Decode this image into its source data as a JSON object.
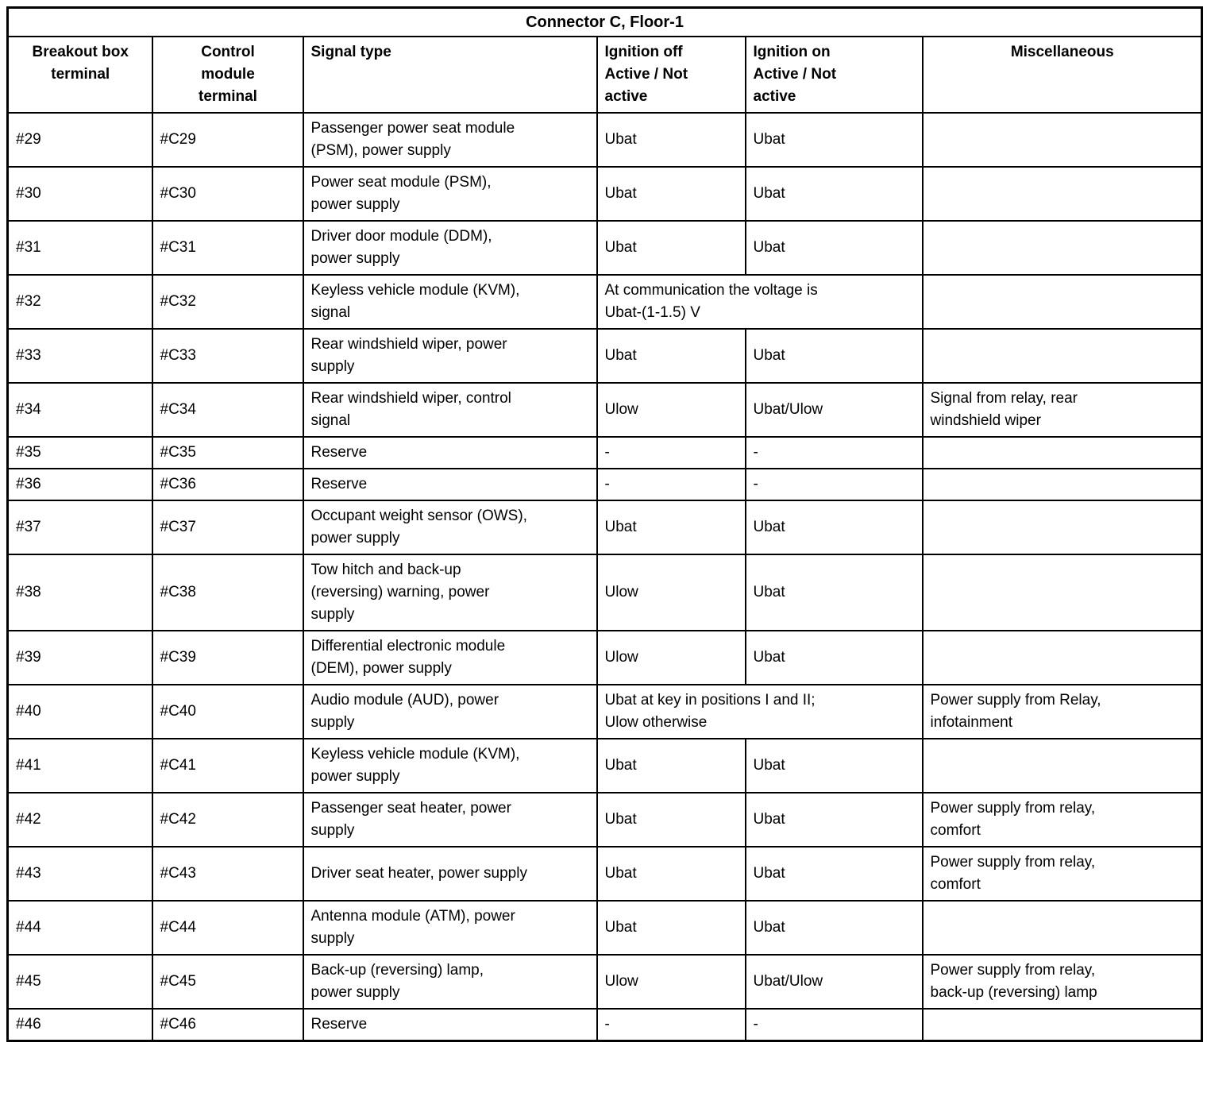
{
  "title": "Connector C, Floor-1",
  "headers": {
    "breakout": "Breakout box\nterminal",
    "module": "Control\nmodule\nterminal",
    "signal": "Signal type",
    "ignition_off": "Ignition off\nActive / Not\nactive",
    "ignition_on": "Ignition on\nActive / Not\nactive",
    "misc": "Miscellaneous"
  },
  "rows": [
    {
      "breakout": "#29",
      "module": "#C29",
      "signal": "Passenger power seat module\n(PSM), power supply",
      "ignition_off": "Ubat",
      "ignition_on": "Ubat",
      "misc": ""
    },
    {
      "breakout": "#30",
      "module": "#C30",
      "signal": "Power seat module (PSM),\npower supply",
      "ignition_off": "Ubat",
      "ignition_on": "Ubat",
      "misc": ""
    },
    {
      "breakout": "#31",
      "module": "#C31",
      "signal": "Driver door module (DDM),\npower supply",
      "ignition_off": "Ubat",
      "ignition_on": "Ubat",
      "misc": ""
    },
    {
      "breakout": "#32",
      "module": "#C32",
      "signal": "Keyless vehicle module (KVM),\nsignal",
      "ignition_merged": "At communication the voltage is\nUbat-(1-1.5) V",
      "misc": ""
    },
    {
      "breakout": "#33",
      "module": "#C33",
      "signal": "Rear windshield wiper, power\nsupply",
      "ignition_off": "Ubat",
      "ignition_on": "Ubat",
      "misc": ""
    },
    {
      "breakout": "#34",
      "module": "#C34",
      "signal": "Rear windshield wiper, control\nsignal",
      "ignition_off": "Ulow",
      "ignition_on": "Ubat/Ulow",
      "misc": "Signal from relay, rear\nwindshield wiper"
    },
    {
      "breakout": "#35",
      "module": "#C35",
      "signal": "Reserve",
      "ignition_off": "-",
      "ignition_on": "-",
      "misc": ""
    },
    {
      "breakout": "#36",
      "module": "#C36",
      "signal": "Reserve",
      "ignition_off": "-",
      "ignition_on": "-",
      "misc": ""
    },
    {
      "breakout": "#37",
      "module": "#C37",
      "signal": "Occupant weight sensor (OWS),\npower supply",
      "ignition_off": "Ubat",
      "ignition_on": "Ubat",
      "misc": ""
    },
    {
      "breakout": "#38",
      "module": "#C38",
      "signal": "Tow hitch and back-up\n(reversing) warning, power\nsupply",
      "ignition_off": "Ulow",
      "ignition_on": "Ubat",
      "misc": ""
    },
    {
      "breakout": "#39",
      "module": "#C39",
      "signal": "Differential electronic module\n(DEM), power supply",
      "ignition_off": "Ulow",
      "ignition_on": "Ubat",
      "misc": ""
    },
    {
      "breakout": "#40",
      "module": "#C40",
      "signal": "Audio module (AUD), power\nsupply",
      "ignition_merged": "Ubat at key in positions I and II;\nUlow otherwise",
      "misc": "Power supply from Relay,\ninfotainment"
    },
    {
      "breakout": "#41",
      "module": "#C41",
      "signal": "Keyless vehicle module (KVM),\npower supply",
      "ignition_off": "Ubat",
      "ignition_on": "Ubat",
      "misc": ""
    },
    {
      "breakout": "#42",
      "module": "#C42",
      "signal": "Passenger seat heater, power\nsupply",
      "ignition_off": "Ubat",
      "ignition_on": "Ubat",
      "misc": "Power supply from relay,\ncomfort"
    },
    {
      "breakout": "#43",
      "module": "#C43",
      "signal": "Driver seat heater, power supply",
      "ignition_off": "Ubat",
      "ignition_on": "Ubat",
      "misc": "Power supply from relay,\ncomfort"
    },
    {
      "breakout": "#44",
      "module": "#C44",
      "signal": "Antenna module (ATM), power\nsupply",
      "ignition_off": "Ubat",
      "ignition_on": "Ubat",
      "misc": ""
    },
    {
      "breakout": "#45",
      "module": "#C45",
      "signal": "Back-up (reversing) lamp,\npower supply",
      "ignition_off": "Ulow",
      "ignition_on": "Ubat/Ulow",
      "misc": "Power supply from relay,\nback-up (reversing) lamp"
    },
    {
      "breakout": "#46",
      "module": "#C46",
      "signal": "Reserve",
      "ignition_off": "-",
      "ignition_on": "-",
      "misc": ""
    }
  ]
}
